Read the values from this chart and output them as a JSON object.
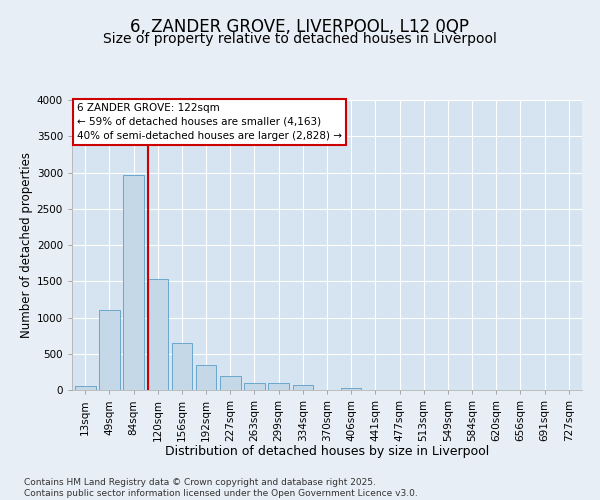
{
  "title": "6, ZANDER GROVE, LIVERPOOL, L12 0QP",
  "subtitle": "Size of property relative to detached houses in Liverpool",
  "xlabel": "Distribution of detached houses by size in Liverpool",
  "ylabel": "Number of detached properties",
  "categories": [
    "13sqm",
    "49sqm",
    "84sqm",
    "120sqm",
    "156sqm",
    "192sqm",
    "227sqm",
    "263sqm",
    "299sqm",
    "334sqm",
    "370sqm",
    "406sqm",
    "441sqm",
    "477sqm",
    "513sqm",
    "549sqm",
    "584sqm",
    "620sqm",
    "656sqm",
    "691sqm",
    "727sqm"
  ],
  "values": [
    50,
    1100,
    2970,
    1530,
    650,
    340,
    195,
    90,
    90,
    65,
    0,
    30,
    0,
    0,
    0,
    0,
    0,
    0,
    0,
    0,
    0
  ],
  "bar_color": "#c5d8e8",
  "bar_edge_color": "#5a9ec9",
  "vline_color": "#cc0000",
  "vline_x_index": 3,
  "annotation_line1": "6 ZANDER GROVE: 122sqm",
  "annotation_line2": "← 59% of detached houses are smaller (4,163)",
  "annotation_line3": "40% of semi-detached houses are larger (2,828) →",
  "annotation_box_color": "#cc0000",
  "ylim": [
    0,
    4000
  ],
  "yticks": [
    0,
    500,
    1000,
    1500,
    2000,
    2500,
    3000,
    3500,
    4000
  ],
  "background_color": "#e8eef5",
  "plot_bg_color": "#d5e4f0",
  "footer": "Contains HM Land Registry data © Crown copyright and database right 2025.\nContains public sector information licensed under the Open Government Licence v3.0.",
  "title_fontsize": 12,
  "subtitle_fontsize": 10,
  "xlabel_fontsize": 9,
  "ylabel_fontsize": 8.5,
  "tick_fontsize": 7.5,
  "annotation_fontsize": 7.5,
  "footer_fontsize": 6.5
}
